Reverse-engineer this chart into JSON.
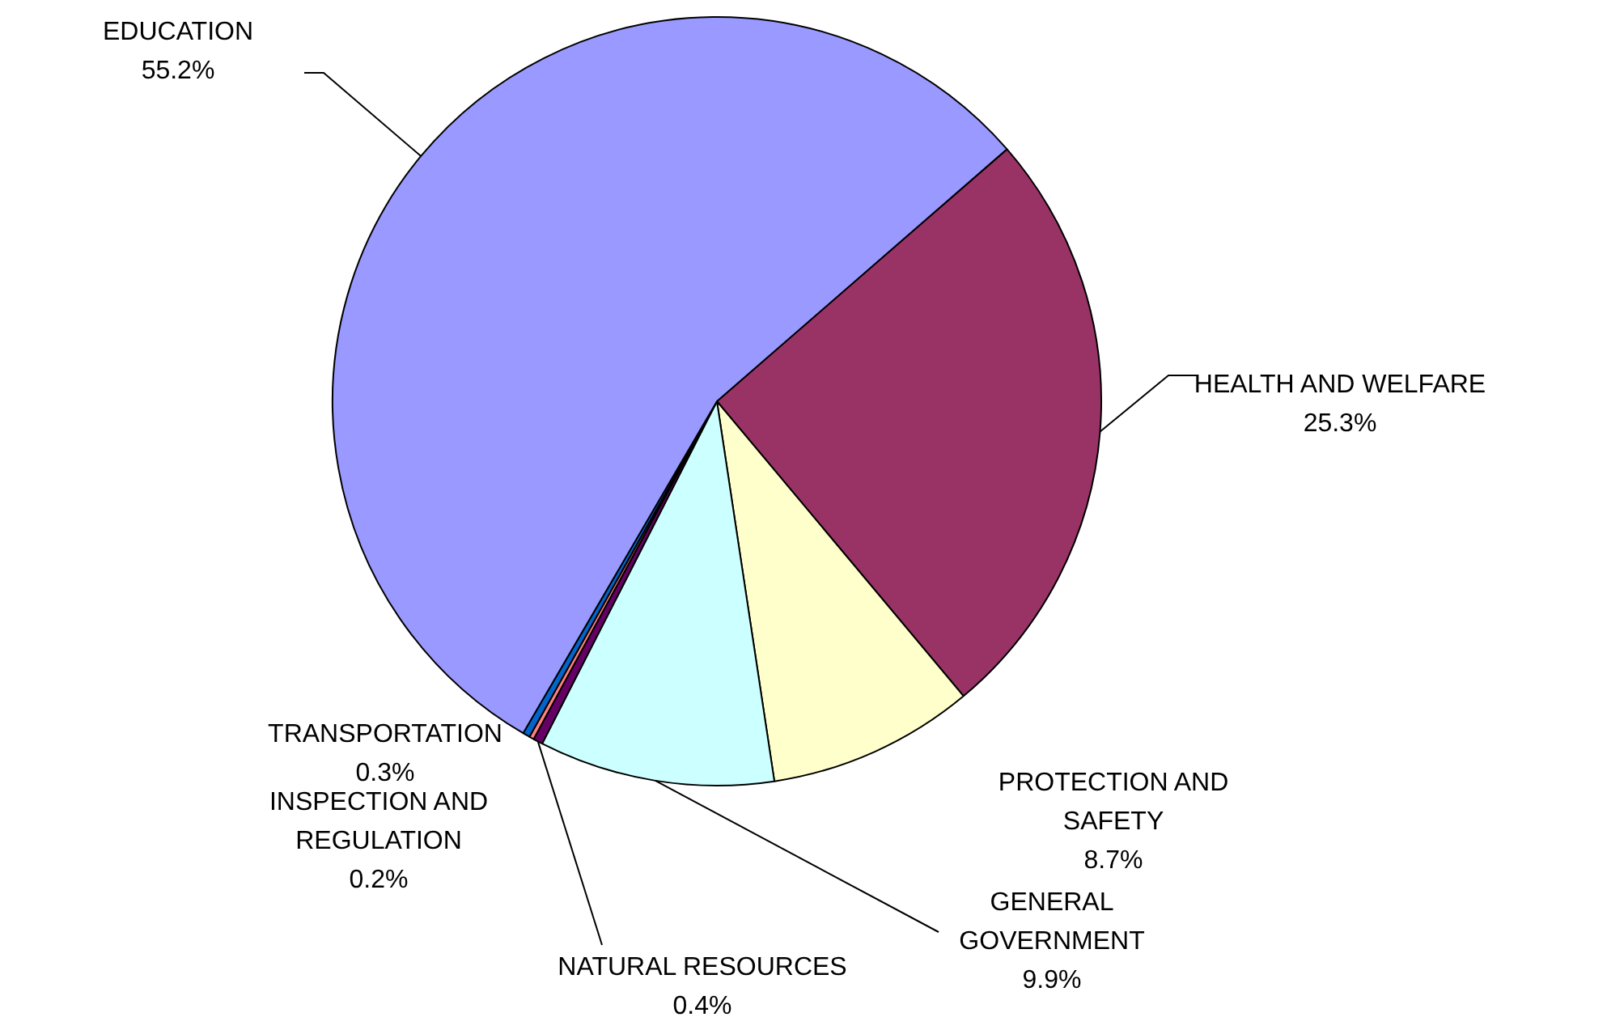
{
  "chart_data": {
    "type": "pie",
    "categories": [
      "HEALTH AND WELFARE",
      "PROTECTION AND SAFETY",
      "GENERAL GOVERNMENT",
      "NATURAL RESOURCES",
      "INSPECTION AND REGULATION",
      "TRANSPORTATION",
      "EDUCATION"
    ],
    "values": [
      25.3,
      8.7,
      9.9,
      0.4,
      0.2,
      0.3,
      55.2
    ],
    "value_labels": [
      "25.3%",
      "8.7%",
      "9.9%",
      "0.4%",
      "0.2%",
      "0.3%",
      "55.2%"
    ],
    "colors": [
      "#993366",
      "#ffffcc",
      "#ccffff",
      "#660066",
      "#ff8080",
      "#0066cc",
      "#9999ff"
    ],
    "legend": false
  }
}
